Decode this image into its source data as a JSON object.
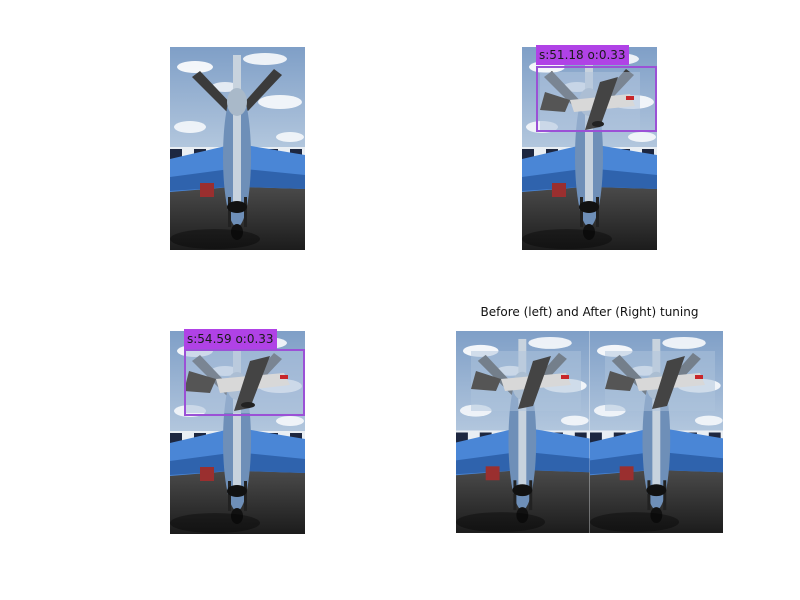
{
  "panels": {
    "top_left": {},
    "top_right": {
      "detection_label": "s:51.18 o:0.33"
    },
    "bottom_left": {
      "detection_label": "s:54.59 o:0.33"
    },
    "bottom_right": {
      "title": "Before (left) and After (Right) tuning"
    }
  },
  "colors": {
    "detection_box": "#9b51d6",
    "label_bg": "#b042e6",
    "sky": "#9fb8d6",
    "plane_body": "#4a86d6",
    "tarmac": "#2a2a2a"
  }
}
